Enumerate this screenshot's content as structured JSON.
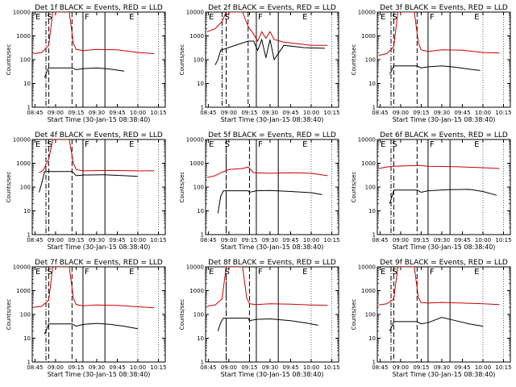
{
  "chart_data": [
    {
      "type": "line",
      "title": "Det 1f BLACK = Events, RED = LLD",
      "ylabel": "Counts/sec",
      "xlabel": "Start Time (30-Jan-15 08:38:40)",
      "yscale": "log",
      "ylim": [
        1,
        10000
      ],
      "xlim": [
        "08:43",
        "10:20"
      ],
      "xticks": [
        "08:45",
        "09:00",
        "09:15",
        "09:30",
        "09:45",
        "10:00",
        "10:15"
      ],
      "yticks": [
        "1",
        "10",
        "100",
        "1000",
        "10000"
      ],
      "interval_marks": {
        "dotdash": "08:53",
        "dashed": [
          "08:55",
          "09:12"
        ],
        "solid": [
          "09:20",
          "09:36"
        ]
      },
      "letters": [
        "E",
        "S",
        "F",
        "E"
      ],
      "series": [
        {
          "name": "BLACK",
          "color": "#000000",
          "x": [
            "08:52",
            "08:54",
            "08:55",
            "09:12",
            "09:15",
            "09:20",
            "09:30",
            "09:40",
            "09:50"
          ],
          "y": [
            18,
            35,
            45,
            45,
            38,
            42,
            45,
            40,
            33
          ]
        },
        {
          "name": "RED",
          "color": "#cc0000",
          "x": [
            "08:44",
            "08:50",
            "08:55",
            "08:58",
            "09:10",
            "09:13",
            "09:15",
            "09:20",
            "09:30",
            "09:45",
            "10:00",
            "10:12"
          ],
          "y": [
            180,
            200,
            400,
            10000,
            10000,
            500,
            270,
            240,
            270,
            260,
            200,
            180
          ]
        }
      ]
    },
    {
      "type": "line",
      "title": "Det 2f BLACK = Events, RED = LLD",
      "ylabel": "Counts/sec",
      "xlabel": "Start Time (30-Jan-15 08:38:40)",
      "yscale": "log",
      "ylim": [
        1,
        10000
      ],
      "xlim": [
        "08:43",
        "10:20"
      ],
      "xticks": [
        "08:45",
        "09:00",
        "09:15",
        "09:30",
        "09:45",
        "10:00",
        "10:15"
      ],
      "yticks": [
        "1",
        "10",
        "100",
        "1000",
        "10000"
      ],
      "interval_marks": {
        "dotdash": "08:55",
        "dashed": [
          "08:58",
          "09:14"
        ],
        "solid": [
          "09:20",
          "09:36"
        ]
      },
      "letters": [
        "E",
        "S",
        "F",
        "E"
      ],
      "series": [
        {
          "name": "BLACK",
          "color": "#000000",
          "x": [
            "08:50",
            "08:52",
            "08:54",
            "09:14",
            "09:18",
            "09:21",
            "09:24",
            "09:27",
            "09:30",
            "09:33",
            "09:40",
            "09:55",
            "10:10"
          ],
          "y": [
            60,
            100,
            250,
            600,
            600,
            250,
            700,
            120,
            700,
            100,
            400,
            320,
            300
          ]
        },
        {
          "name": "RED",
          "color": "#cc0000",
          "x": [
            "08:44",
            "08:50",
            "08:55",
            "08:58",
            "09:10",
            "09:14",
            "09:18",
            "09:21",
            "09:24",
            "09:27",
            "09:30",
            "09:33",
            "09:40",
            "10:00",
            "10:12"
          ],
          "y": [
            1500,
            2000,
            4000,
            10000,
            10000,
            2500,
            1200,
            600,
            1500,
            800,
            1500,
            700,
            550,
            400,
            400
          ]
        }
      ]
    },
    {
      "type": "line",
      "title": "Det 3f BLACK = Events, RED = LLD",
      "ylabel": "Counts/sec",
      "xlabel": "Start Time (30-Jan-15 08:38:40)",
      "yscale": "log",
      "ylim": [
        1,
        10000
      ],
      "xlim": [
        "08:43",
        "10:20"
      ],
      "xticks": [
        "08:45",
        "09:00",
        "09:15",
        "09:30",
        "09:45",
        "10:00",
        "10:15"
      ],
      "yticks": [
        "1",
        "10",
        "100",
        "1000",
        "10000"
      ],
      "interval_marks": {
        "dotdash": "08:53",
        "dashed": [
          "08:55",
          "09:12"
        ],
        "solid": [
          "09:20",
          "09:36"
        ]
      },
      "letters": [
        "E",
        "S",
        "F",
        "E"
      ],
      "series": [
        {
          "name": "BLACK",
          "color": "#000000",
          "x": [
            "08:52",
            "08:54",
            "08:55",
            "09:12",
            "09:15",
            "09:20",
            "09:30",
            "09:40",
            "09:50",
            "09:58"
          ],
          "y": [
            25,
            40,
            55,
            55,
            45,
            50,
            55,
            48,
            40,
            35
          ]
        },
        {
          "name": "RED",
          "color": "#cc0000",
          "x": [
            "08:44",
            "08:50",
            "08:55",
            "08:58",
            "09:10",
            "09:13",
            "09:15",
            "09:20",
            "09:30",
            "09:45",
            "10:00",
            "10:12"
          ],
          "y": [
            150,
            180,
            350,
            10000,
            10000,
            500,
            260,
            220,
            260,
            250,
            200,
            190
          ]
        }
      ]
    },
    {
      "type": "line",
      "title": "Det 4f BLACK = Events, RED = LLD",
      "ylabel": "Counts/sec",
      "xlabel": "Start Time (30-Jan-15 08:38:40)",
      "yscale": "log",
      "ylim": [
        1,
        10000
      ],
      "xlim": [
        "08:43",
        "10:20"
      ],
      "xticks": [
        "08:45",
        "09:00",
        "09:15",
        "09:30",
        "09:45",
        "10:00",
        "10:15"
      ],
      "yticks": [
        "1",
        "10",
        "100",
        "1000",
        "10000"
      ],
      "interval_marks": {
        "dotdash": "08:53",
        "dashed": [
          "08:55",
          "09:12"
        ],
        "solid": [
          "09:20",
          "09:36"
        ]
      },
      "letters": [
        "E",
        "S",
        "F",
        "E"
      ],
      "series": [
        {
          "name": "BLACK",
          "color": "#000000",
          "x": [
            "08:48",
            "08:50",
            "08:52",
            "09:12",
            "09:15",
            "09:20",
            "09:35",
            "09:50",
            "10:00"
          ],
          "y": [
            60,
            150,
            450,
            450,
            300,
            320,
            330,
            300,
            280
          ]
        },
        {
          "name": "RED",
          "color": "#cc0000",
          "x": [
            "08:48",
            "08:51",
            "08:55",
            "08:58",
            "09:10",
            "09:13",
            "09:15",
            "09:20",
            "09:40",
            "10:00",
            "10:12"
          ],
          "y": [
            400,
            500,
            1500,
            10000,
            10000,
            1000,
            550,
            480,
            500,
            480,
            480
          ]
        }
      ]
    },
    {
      "type": "line",
      "title": "Det 5f BLACK = Events, RED = LLD",
      "ylabel": "Counts/sec",
      "xlabel": "Start Time (30-Jan-15 08:38:40)",
      "yscale": "log",
      "ylim": [
        1,
        10000
      ],
      "xlim": [
        "08:43",
        "10:20"
      ],
      "xticks": [
        "08:45",
        "09:00",
        "09:15",
        "09:30",
        "09:45",
        "10:00",
        "10:15"
      ],
      "yticks": [
        "1",
        "10",
        "100",
        "1000",
        "10000"
      ],
      "interval_marks": {
        "dotdash": "08:58",
        "dashed": [
          "08:58",
          "09:15"
        ],
        "solid": [
          "09:20",
          "09:36"
        ]
      },
      "letters": [
        "E",
        "S",
        "F",
        "E"
      ],
      "series": [
        {
          "name": "BLACK",
          "color": "#000000",
          "x": [
            "08:52",
            "08:54",
            "08:56",
            "09:14",
            "09:15",
            "09:20",
            "09:30",
            "09:45",
            "10:00",
            "10:08"
          ],
          "y": [
            8,
            40,
            70,
            70,
            60,
            70,
            72,
            65,
            58,
            48
          ]
        },
        {
          "name": "RED",
          "color": "#cc0000",
          "x": [
            "08:44",
            "08:50",
            "08:55",
            "09:00",
            "09:10",
            "09:14",
            "09:18",
            "09:30",
            "09:45",
            "10:00",
            "10:12"
          ],
          "y": [
            250,
            300,
            420,
            550,
            600,
            700,
            400,
            380,
            400,
            380,
            300
          ]
        }
      ]
    },
    {
      "type": "line",
      "title": "Det 6f BLACK = Events, RED = LLD",
      "ylabel": "Counts/sec",
      "xlabel": "Start Time (30-Jan-15 08:38:40)",
      "yscale": "log",
      "ylim": [
        1,
        10000
      ],
      "xlim": [
        "08:43",
        "10:20"
      ],
      "xticks": [
        "08:45",
        "09:00",
        "09:15",
        "09:30",
        "09:45",
        "10:00",
        "10:15"
      ],
      "yticks": [
        "1",
        "10",
        "100",
        "1000",
        "10000"
      ],
      "interval_marks": {
        "dotdash": "08:53",
        "dashed": [
          "08:55",
          "09:12"
        ],
        "solid": [
          "09:20",
          "09:36"
        ]
      },
      "letters": [
        "E",
        "S",
        "F",
        "E"
      ],
      "series": [
        {
          "name": "BLACK",
          "color": "#000000",
          "x": [
            "08:52",
            "08:54",
            "08:55",
            "09:12",
            "09:15",
            "09:20",
            "09:35",
            "09:50",
            "10:00",
            "10:10"
          ],
          "y": [
            20,
            45,
            75,
            75,
            60,
            70,
            78,
            80,
            65,
            45
          ]
        },
        {
          "name": "RED",
          "color": "#cc0000",
          "x": [
            "08:44",
            "08:50",
            "08:55",
            "09:10",
            "09:15",
            "09:20",
            "09:40",
            "10:00",
            "10:12"
          ],
          "y": [
            600,
            700,
            750,
            800,
            800,
            750,
            720,
            650,
            600
          ]
        }
      ]
    },
    {
      "type": "line",
      "title": "Det 7f BLACK = Events, RED = LLD",
      "ylabel": "Counts/sec",
      "xlabel": "Start Time (30-Jan-15 08:38:40)",
      "yscale": "log",
      "ylim": [
        1,
        10000
      ],
      "xlim": [
        "08:43",
        "10:20"
      ],
      "xticks": [
        "08:45",
        "09:00",
        "09:15",
        "09:30",
        "09:45",
        "10:00",
        "10:15"
      ],
      "yticks": [
        "1",
        "10",
        "100",
        "1000",
        "10000"
      ],
      "interval_marks": {
        "dotdash": "08:53",
        "dashed": [
          "08:55",
          "09:12"
        ],
        "solid": [
          "09:20",
          "09:36"
        ]
      },
      "letters": [
        "E",
        "S",
        "F",
        "E"
      ],
      "series": [
        {
          "name": "BLACK",
          "color": "#000000",
          "x": [
            "08:52",
            "08:54",
            "08:55",
            "09:12",
            "09:15",
            "09:20",
            "09:30",
            "09:40",
            "09:50",
            "10:00"
          ],
          "y": [
            15,
            28,
            40,
            40,
            32,
            38,
            42,
            38,
            32,
            25
          ]
        },
        {
          "name": "RED",
          "color": "#cc0000",
          "x": [
            "08:44",
            "08:50",
            "08:55",
            "08:58",
            "09:10",
            "09:13",
            "09:15",
            "09:20",
            "09:30",
            "09:45",
            "10:00",
            "10:12"
          ],
          "y": [
            200,
            220,
            400,
            10000,
            10000,
            500,
            260,
            230,
            250,
            240,
            210,
            190
          ]
        }
      ]
    },
    {
      "type": "line",
      "title": "Det 8f BLACK = Events, RED = LLD",
      "ylabel": "Counts/sec",
      "xlabel": "Start Time (30-Jan-15 08:38:40)",
      "yscale": "log",
      "ylim": [
        1,
        10000
      ],
      "xlim": [
        "08:43",
        "10:20"
      ],
      "xticks": [
        "08:45",
        "09:00",
        "09:15",
        "09:30",
        "09:45",
        "10:00",
        "10:15"
      ],
      "yticks": [
        "1",
        "10",
        "100",
        "1000",
        "10000"
      ],
      "interval_marks": {
        "dotdash": "08:58",
        "dashed": [
          "08:58",
          "09:15"
        ],
        "solid": [
          "09:20",
          "09:36"
        ]
      },
      "letters": [
        "E",
        "S",
        "F",
        "E"
      ],
      "series": [
        {
          "name": "BLACK",
          "color": "#000000",
          "x": [
            "08:52",
            "08:54",
            "08:56",
            "09:14",
            "09:15",
            "09:20",
            "09:30",
            "09:45",
            "09:55",
            "10:05"
          ],
          "y": [
            20,
            45,
            70,
            70,
            55,
            62,
            65,
            55,
            45,
            35
          ]
        },
        {
          "name": "RED",
          "color": "#cc0000",
          "x": [
            "08:44",
            "08:50",
            "08:55",
            "08:58",
            "09:10",
            "09:13",
            "09:15",
            "09:20",
            "09:30",
            "09:45",
            "10:00",
            "10:12"
          ],
          "y": [
            220,
            250,
            450,
            10000,
            10000,
            500,
            280,
            260,
            280,
            270,
            250,
            240
          ]
        }
      ]
    },
    {
      "type": "line",
      "title": "Det 9f BLACK = Events, RED = LLD",
      "ylabel": "Counts/sec",
      "xlabel": "Start Time (30-Jan-15 08:38:40)",
      "yscale": "log",
      "ylim": [
        1,
        10000
      ],
      "xlim": [
        "08:43",
        "10:20"
      ],
      "xticks": [
        "08:45",
        "09:00",
        "09:15",
        "09:30",
        "09:45",
        "10:00",
        "10:15"
      ],
      "yticks": [
        "1",
        "10",
        "100",
        "1000",
        "10000"
      ],
      "interval_marks": {
        "dotdash": "08:53",
        "dashed": [
          "08:55",
          "09:12"
        ],
        "solid": [
          "09:20",
          "09:36"
        ]
      },
      "letters": [
        "E",
        "S",
        "F",
        "E"
      ],
      "series": [
        {
          "name": "BLACK",
          "color": "#000000",
          "x": [
            "08:52",
            "08:54",
            "08:55",
            "09:12",
            "09:15",
            "09:20",
            "09:30",
            "09:40",
            "09:50",
            "10:00"
          ],
          "y": [
            20,
            35,
            50,
            50,
            40,
            45,
            75,
            55,
            40,
            32
          ]
        },
        {
          "name": "RED",
          "color": "#cc0000",
          "x": [
            "08:44",
            "08:50",
            "08:55",
            "08:58",
            "09:10",
            "09:13",
            "09:15",
            "09:20",
            "09:30",
            "09:45",
            "10:00",
            "10:12"
          ],
          "y": [
            250,
            280,
            450,
            10000,
            10000,
            500,
            320,
            300,
            320,
            300,
            280,
            260
          ]
        }
      ]
    }
  ]
}
